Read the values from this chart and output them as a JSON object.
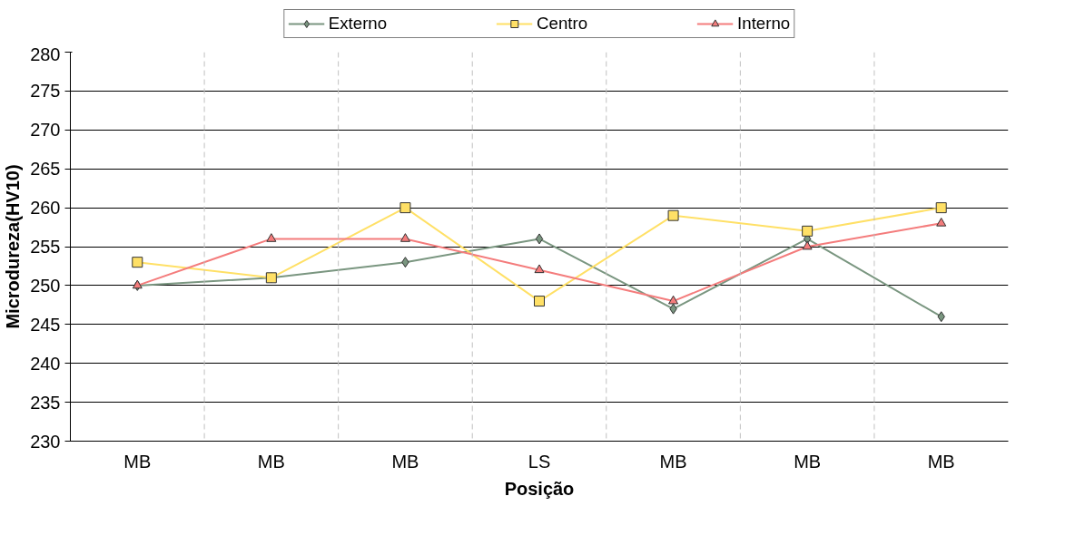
{
  "chart_data": {
    "type": "line",
    "xlabel": "Posição",
    "ylabel": "Microdureza(HV10)",
    "categories": [
      "MB",
      "MB",
      "MB",
      "LS",
      "MB",
      "MB",
      "MB"
    ],
    "series": [
      {
        "name": "Externo",
        "color": "#7a9680",
        "marker": "diamond",
        "values": [
          250,
          251,
          253,
          256,
          247,
          256,
          246
        ]
      },
      {
        "name": "Centro",
        "color": "#ffe066",
        "marker": "square",
        "values": [
          253,
          251,
          260,
          248,
          259,
          257,
          260
        ]
      },
      {
        "name": "Interno",
        "color": "#f47c7c",
        "marker": "triangle",
        "values": [
          250,
          256,
          256,
          252,
          248,
          255,
          258
        ]
      }
    ],
    "ylim": [
      230,
      280
    ],
    "yticks": [
      230,
      235,
      240,
      245,
      250,
      255,
      260,
      265,
      270,
      275,
      280
    ],
    "grid": true,
    "legend": "top"
  }
}
